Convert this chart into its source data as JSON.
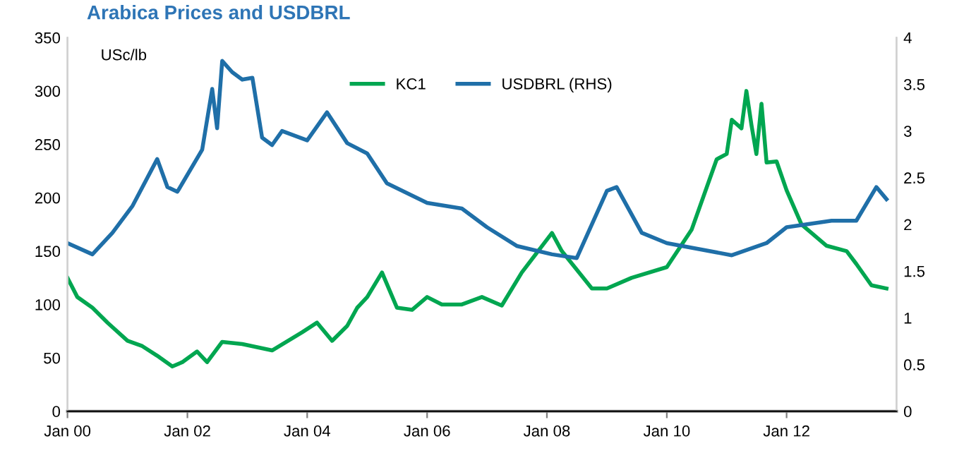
{
  "chart_data": {
    "type": "line",
    "title": "Arabica Prices and USDBRL",
    "ylabel": "USc/lb",
    "xlim": [
      "2000-01",
      "2013-11"
    ],
    "xticks": [
      {
        "value": "2000-01",
        "label": "Jan 00"
      },
      {
        "value": "2002-01",
        "label": "Jan 02"
      },
      {
        "value": "2004-01",
        "label": "Jan 04"
      },
      {
        "value": "2006-01",
        "label": "Jan 06"
      },
      {
        "value": "2008-01",
        "label": "Jan 08"
      },
      {
        "value": "2010-01",
        "label": "Jan 10"
      },
      {
        "value": "2012-01",
        "label": "Jan 12"
      }
    ],
    "ylim": [
      0,
      350
    ],
    "yticks": [
      0,
      50,
      100,
      150,
      200,
      250,
      300,
      350
    ],
    "y2lim": [
      0,
      4
    ],
    "y2ticks": [
      0,
      0.5,
      1,
      1.5,
      2,
      2.5,
      3,
      3.5,
      4
    ],
    "grid": false,
    "legend": "top",
    "marker": "none",
    "line_style": "solid",
    "series": [
      {
        "name": "KC1",
        "color": "#00a650",
        "x": [
          "2000-01",
          "2000-03",
          "2000-06",
          "2000-09",
          "2001-01",
          "2001-04",
          "2001-07",
          "2001-10",
          "2001-12",
          "2002-03",
          "2002-05",
          "2002-08",
          "2002-12",
          "2003-06",
          "2003-12",
          "2004-03",
          "2004-06",
          "2004-09",
          "2004-11",
          "2005-01",
          "2005-04",
          "2005-07",
          "2005-10",
          "2006-01",
          "2006-04",
          "2006-08",
          "2006-12",
          "2007-04",
          "2007-08",
          "2008-02",
          "2008-04",
          "2008-10",
          "2009-01",
          "2009-06",
          "2010-01",
          "2010-06",
          "2010-11",
          "2011-01",
          "2011-02",
          "2011-04",
          "2011-05",
          "2011-06",
          "2011-07",
          "2011-08",
          "2011-09",
          "2011-11",
          "2012-01",
          "2012-04",
          "2012-06",
          "2012-09",
          "2013-01",
          "2013-03",
          "2013-06",
          "2013-09"
        ],
        "values": [
          125,
          107,
          97,
          83,
          66,
          61,
          52,
          42,
          46,
          56,
          46,
          65,
          63,
          57,
          74,
          83,
          66,
          80,
          97,
          107,
          130,
          97,
          95,
          107,
          100,
          100,
          107,
          99,
          130,
          167,
          150,
          115,
          115,
          125,
          135,
          170,
          236,
          241,
          273,
          265,
          300,
          268,
          241,
          288,
          233,
          234,
          207,
          175,
          167,
          155,
          150,
          138,
          118,
          115
        ]
      },
      {
        "name": "USDBRL (RHS)",
        "color": "#1f6fa8",
        "axis": "y2",
        "x": [
          "2000-01",
          "2000-06",
          "2000-10",
          "2001-02",
          "2001-07",
          "2001-09",
          "2001-11",
          "2002-04",
          "2002-06",
          "2002-07",
          "2002-08",
          "2002-10",
          "2002-12",
          "2003-02",
          "2003-04",
          "2003-06",
          "2003-08",
          "2004-01",
          "2004-05",
          "2004-09",
          "2005-01",
          "2005-05",
          "2006-01",
          "2006-08",
          "2007-01",
          "2007-07",
          "2008-02",
          "2008-07",
          "2009-01",
          "2009-03",
          "2009-08",
          "2010-01",
          "2011-02",
          "2011-09",
          "2012-01",
          "2012-10",
          "2013-03",
          "2013-07",
          "2013-09"
        ],
        "values": [
          1.8,
          1.68,
          1.91,
          2.2,
          2.7,
          2.4,
          2.35,
          2.8,
          3.45,
          3.03,
          3.75,
          3.63,
          3.55,
          3.57,
          2.93,
          2.85,
          3.0,
          2.9,
          3.2,
          2.87,
          2.76,
          2.44,
          2.23,
          2.17,
          1.97,
          1.77,
          1.68,
          1.64,
          2.36,
          2.4,
          1.91,
          1.8,
          1.67,
          1.8,
          1.97,
          2.04,
          2.04,
          2.4,
          2.27
        ]
      }
    ]
  }
}
